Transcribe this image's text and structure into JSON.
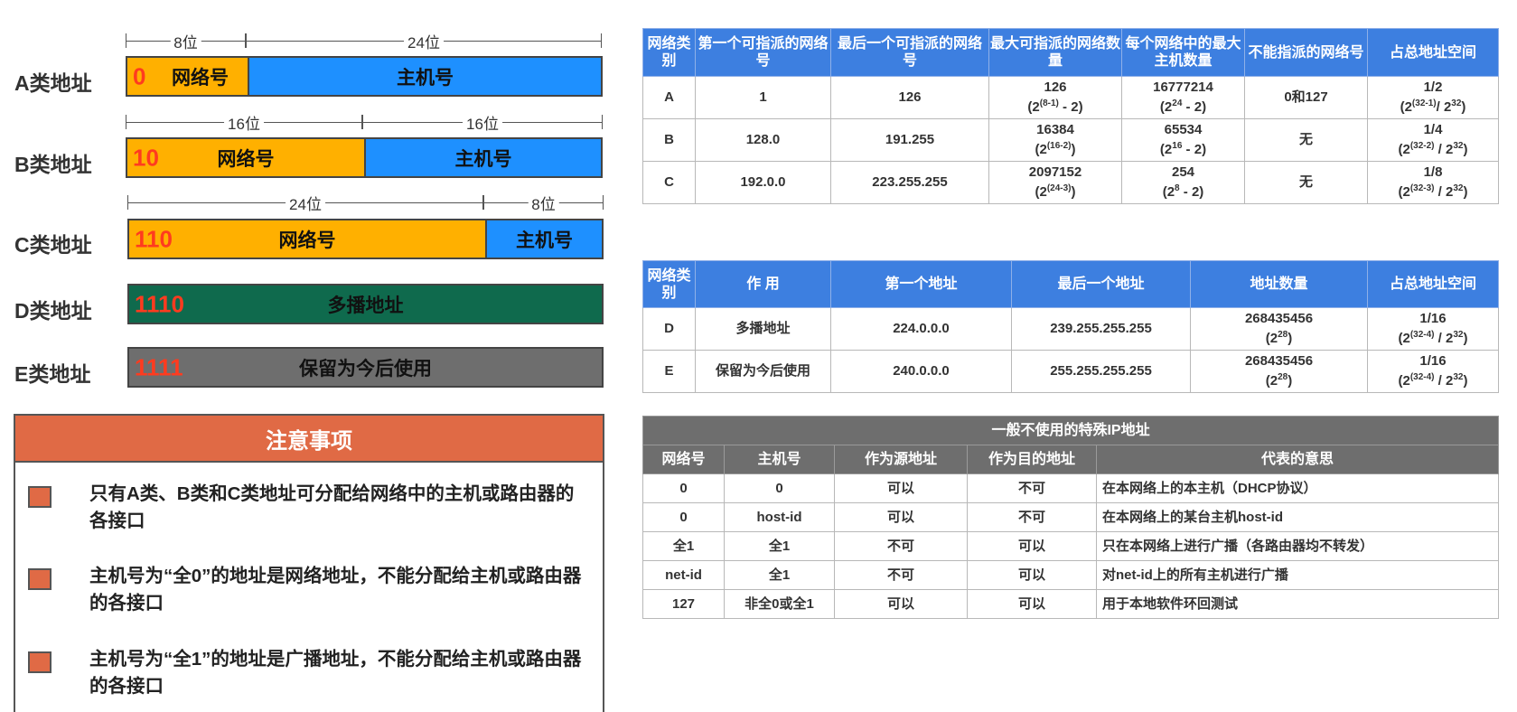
{
  "classes": {
    "A": {
      "label": "A类地址",
      "prefix": "0",
      "net": "网络号",
      "host": "主机号",
      "dim_net": "8位",
      "dim_host": "24位"
    },
    "B": {
      "label": "B类地址",
      "prefix": "10",
      "net": "网络号",
      "host": "主机号",
      "dim_net": "16位",
      "dim_host": "16位"
    },
    "C": {
      "label": "C类地址",
      "prefix": "110",
      "net": "网络号",
      "host": "主机号",
      "dim_net": "24位",
      "dim_host": "8位"
    },
    "D": {
      "label": "D类地址",
      "prefix": "1110",
      "body": "多播地址"
    },
    "E": {
      "label": "E类地址",
      "prefix": "1111",
      "body": "保留为今后使用"
    }
  },
  "notice": {
    "title": "注意事项",
    "items": [
      "只有A类、B类和C类地址可分配给网络中的主机或路由器的各接口",
      "主机号为“全0”的地址是网络地址，不能分配给主机或路由器的各接口",
      "主机号为“全1”的地址是广播地址，不能分配给主机或路由器的各接口"
    ]
  },
  "table1": {
    "headers": [
      "网络类别",
      "第一个可指派的网络号",
      "最后一个可指派的网络号",
      "最大可指派的网络数量",
      "每个网络中的最大主机数量",
      "不能指派的网络号",
      "占总地址空间"
    ],
    "rows": [
      {
        "cls": "A",
        "first": "1",
        "last": "126",
        "count": "126",
        "max_hosts": "16777214",
        "not": "0和127",
        "share": "1/2"
      },
      {
        "cls": "B",
        "first": "128.0",
        "last": "191.255",
        "count": "16384",
        "max_hosts": "65534",
        "not": "无",
        "share": "1/4"
      },
      {
        "cls": "C",
        "first": "192.0.0",
        "last": "223.255.255",
        "count": "2097152",
        "max_hosts": "254",
        "not": "无",
        "share": "1/8"
      }
    ]
  },
  "table2": {
    "headers": [
      "网络类别",
      "作 用",
      "第一个地址",
      "最后一个地址",
      "地址数量",
      "占总地址空间"
    ],
    "rows": [
      {
        "cls": "D",
        "use": "多播地址",
        "first": "224.0.0.0",
        "last": "239.255.255.255",
        "count": "268435456",
        "share": "1/16"
      },
      {
        "cls": "E",
        "use": "保留为今后使用",
        "first": "240.0.0.0",
        "last": "255.255.255.255",
        "count": "268435456",
        "share": "1/16"
      }
    ]
  },
  "table3": {
    "title": "一般不使用的特殊IP地址",
    "headers": [
      "网络号",
      "主机号",
      "作为源地址",
      "作为目的地址",
      "代表的意思"
    ],
    "rows": [
      [
        "0",
        "0",
        "可以",
        "不可",
        "在本网络上的本主机（DHCP协议）"
      ],
      [
        "0",
        "host-id",
        "可以",
        "不可",
        "在本网络上的某台主机host-id"
      ],
      [
        "全1",
        "全1",
        "不可",
        "可以",
        "只在本网络上进行广播（各路由器均不转发）"
      ],
      [
        "net-id",
        "全1",
        "不可",
        "可以",
        "对net-id上的所有主机进行广播"
      ],
      [
        "127",
        "非全0或全1",
        "可以",
        "可以",
        "用于本地软件环回测试"
      ]
    ]
  }
}
